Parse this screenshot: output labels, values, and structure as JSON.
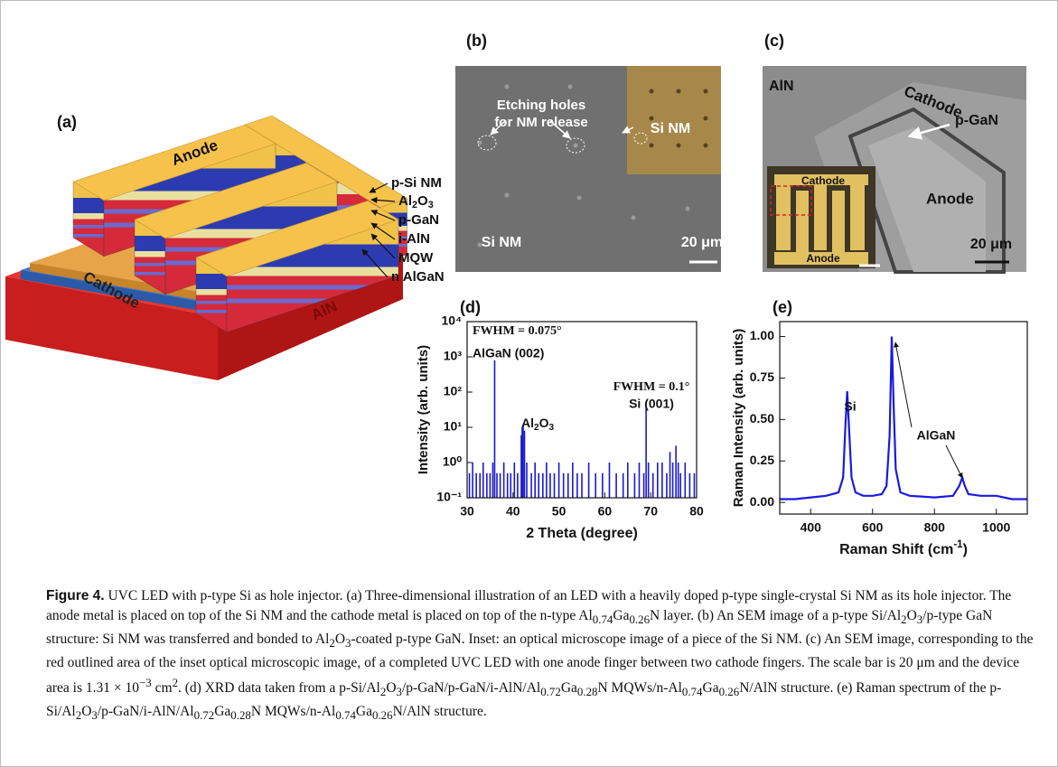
{
  "figure": {
    "a": {
      "label": "(a)",
      "anode": "Anode",
      "cathode": "Cathode",
      "aln": "AlN",
      "layers": [
        "p-Si NM",
        [
          {
            "text": "Al"
          },
          {
            "text": "2",
            "script": "sub"
          },
          {
            "text": "O"
          },
          {
            "text": "3",
            "script": "sub"
          }
        ],
        "p-GaN",
        "i-AlN",
        "MQW",
        "n AlGaN"
      ]
    },
    "b": {
      "label": "(b)",
      "holes": [
        "Etching holes",
        "for NM release"
      ],
      "inset": "Si NM",
      "sample": "Si NM",
      "scale": "20 μm"
    },
    "c": {
      "label": "(c)",
      "aln": "AlN",
      "cathode": "Cathode",
      "pgan": "p-GaN",
      "anode": "Anode",
      "scale": "20 μm",
      "inset_cathode": "Cathode",
      "inset_anode": "Anode"
    }
  },
  "chart_data": [
    {
      "type": "bar",
      "label": "(d)",
      "x_label": "2 Theta (degree)",
      "y_label": "Intensity (arb. units)",
      "log_y": true,
      "color": "#1a1acc",
      "xlim": [
        30,
        80
      ],
      "xticks": [
        30,
        40,
        50,
        60,
        70,
        80
      ],
      "ylim": [
        0.1,
        10000
      ],
      "yticks": [
        {
          "value": 0.1,
          "label": "10⁻¹"
        },
        {
          "value": 1,
          "label": "10⁰"
        },
        {
          "value": 10,
          "label": "10¹"
        },
        {
          "value": 100,
          "label": "10²"
        },
        {
          "value": 1000,
          "label": "10³"
        },
        {
          "value": 10000,
          "label": "10⁴"
        }
      ],
      "x": [
        30.5,
        31.2,
        32,
        32.8,
        33.5,
        34.3,
        35,
        35.6,
        36,
        36.5,
        37.2,
        38,
        38.8,
        39.5,
        40.3,
        41,
        41.8,
        42,
        42.2,
        42.5,
        43,
        44,
        44.8,
        45.6,
        46.5,
        47.3,
        48.1,
        49,
        50,
        51,
        52,
        53,
        54,
        55,
        56.5,
        58,
        59.5,
        61,
        62.5,
        64,
        65,
        66.5,
        67.5,
        68.5,
        69,
        69.5,
        70.5,
        71.5,
        72.5,
        73.5,
        74.2,
        74.8,
        75.5,
        76,
        76.5,
        77.5,
        78.5,
        79.5
      ],
      "values": [
        0.5,
        1,
        0.5,
        0.5,
        1,
        0.5,
        0.5,
        1,
        800,
        0.5,
        0.5,
        1,
        0.5,
        0.5,
        1,
        0.5,
        6,
        10,
        12,
        8,
        1,
        0.5,
        1,
        0.5,
        0.5,
        1,
        0.5,
        0.5,
        1,
        0.5,
        0.5,
        1,
        0.5,
        0.5,
        1,
        0.5,
        0.5,
        1,
        0.5,
        0.5,
        1,
        0.5,
        1,
        0.5,
        35,
        1,
        0.5,
        1,
        1,
        0.5,
        2,
        1,
        3,
        1,
        0.5,
        1,
        0.5,
        0.5
      ],
      "annotations": [
        "FWHM = 0.075°",
        "AlGaN (002)",
        [
          {
            "text": "Al"
          },
          {
            "text": "2",
            "script": "sub"
          },
          {
            "text": "O"
          },
          {
            "text": "3",
            "script": "sub"
          }
        ],
        "FWHM = 0.1°",
        "Si (001)"
      ]
    },
    {
      "type": "line",
      "label": "(e)",
      "x_label": [
        {
          "text": "Raman Shift (cm"
        },
        {
          "text": "-1",
          "script": "sup"
        },
        {
          "text": ")"
        }
      ],
      "y_label": "Raman Intensity (arb. units)",
      "color": "#1a1adf",
      "xlim": [
        300,
        1100
      ],
      "xticks": [
        400,
        600,
        800,
        1000
      ],
      "ylim": [
        -0.07,
        1.09
      ],
      "yticks": [
        {
          "value": 0,
          "label": "0.00"
        },
        {
          "value": 0.25,
          "label": "0.25"
        },
        {
          "value": 0.5,
          "label": "0.50"
        },
        {
          "value": 0.75,
          "label": "0.75"
        },
        {
          "value": 1,
          "label": "1.00"
        }
      ],
      "x": [
        300,
        350,
        400,
        450,
        490,
        505,
        512,
        518,
        524,
        532,
        545,
        570,
        600,
        630,
        645,
        655,
        662,
        668,
        675,
        690,
        720,
        800,
        860,
        880,
        890,
        898,
        910,
        950,
        1000,
        1050,
        1100
      ],
      "values": [
        0.02,
        0.02,
        0.03,
        0.04,
        0.06,
        0.15,
        0.45,
        0.67,
        0.45,
        0.15,
        0.06,
        0.04,
        0.04,
        0.05,
        0.1,
        0.4,
        1.0,
        0.6,
        0.2,
        0.06,
        0.04,
        0.03,
        0.04,
        0.1,
        0.15,
        0.1,
        0.05,
        0.04,
        0.04,
        0.02,
        0.02
      ],
      "annotations": [
        "Si",
        "AlGaN"
      ]
    }
  ],
  "caption": {
    "label": "Figure 4.",
    "runs": [
      {
        "text": " UVC LED with p-type Si as hole injector. (a) Three-dimensional illustration of an LED with a heavily doped p-type single-crystal Si NM as its hole injector. The anode metal is placed on top of the Si NM and the cathode metal is placed on top of the n-type Al"
      },
      {
        "text": "0.74",
        "script": "sub"
      },
      {
        "text": "Ga"
      },
      {
        "text": "0.26",
        "script": "sub"
      },
      {
        "text": "N layer. (b) An SEM image of a p-type Si/Al"
      },
      {
        "text": "2",
        "script": "sub"
      },
      {
        "text": "O"
      },
      {
        "text": "3",
        "script": "sub"
      },
      {
        "text": "/p-type GaN structure: Si NM was transferred and bonded to Al"
      },
      {
        "text": "2",
        "script": "sub"
      },
      {
        "text": "O"
      },
      {
        "text": "3",
        "script": "sub"
      },
      {
        "text": "-coated p-type GaN. Inset: an optical microscope image of a piece of the Si NM. (c) An SEM image, corresponding to the red outlined area of the inset optical microscopic image, of a completed UVC LED with one anode finger between two cathode fingers. The scale bar is 20 μm and the device area is 1.31 × 10"
      },
      {
        "text": "−3",
        "script": "sup"
      },
      {
        "text": " cm"
      },
      {
        "text": "2",
        "script": "sup"
      },
      {
        "text": ". (d) XRD data taken from a p-Si/Al"
      },
      {
        "text": "2",
        "script": "sub"
      },
      {
        "text": "O"
      },
      {
        "text": "3",
        "script": "sub"
      },
      {
        "text": "/p-GaN/p-GaN/i-AlN/Al"
      },
      {
        "text": "0.72",
        "script": "sub"
      },
      {
        "text": "Ga"
      },
      {
        "text": "0.28",
        "script": "sub"
      },
      {
        "text": "N MQWs/n-Al"
      },
      {
        "text": "0.74",
        "script": "sub"
      },
      {
        "text": "Ga"
      },
      {
        "text": "0.26",
        "script": "sub"
      },
      {
        "text": "N/AlN structure. (e) Raman spectrum of the p-Si/Al"
      },
      {
        "text": "2",
        "script": "sub"
      },
      {
        "text": "O"
      },
      {
        "text": "3",
        "script": "sub"
      },
      {
        "text": "/p-GaN/i-AlN/Al"
      },
      {
        "text": "0.72",
        "script": "sub"
      },
      {
        "text": "Ga"
      },
      {
        "text": "0.28",
        "script": "sub"
      },
      {
        "text": "N MQWs/n-Al"
      },
      {
        "text": "0.74",
        "script": "sub"
      },
      {
        "text": "Ga"
      },
      {
        "text": "0.26",
        "script": "sub"
      },
      {
        "text": "N/AlN structure."
      }
    ]
  }
}
